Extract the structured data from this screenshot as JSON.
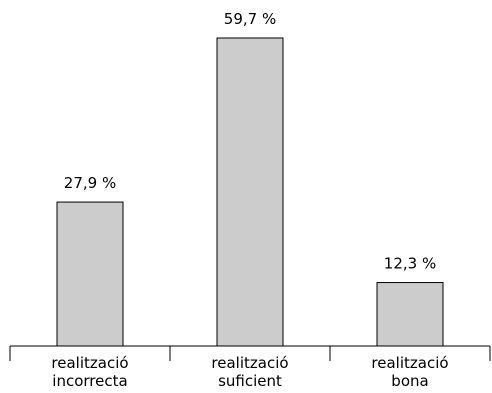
{
  "chart_data": {
    "type": "bar",
    "categories": [
      [
        "realització",
        "incorrecta"
      ],
      [
        "realització",
        "suficient"
      ],
      [
        "realització",
        "bona"
      ]
    ],
    "values": [
      27.9,
      59.7,
      12.3
    ],
    "value_labels": [
      "27,9 %",
      "59,7 %",
      "12,3 %"
    ],
    "title": "",
    "xlabel": "",
    "ylabel": "",
    "ylim": [
      0,
      59.7
    ],
    "grid": false,
    "bar_color": "#cccccc",
    "outline_color": "#000000"
  }
}
